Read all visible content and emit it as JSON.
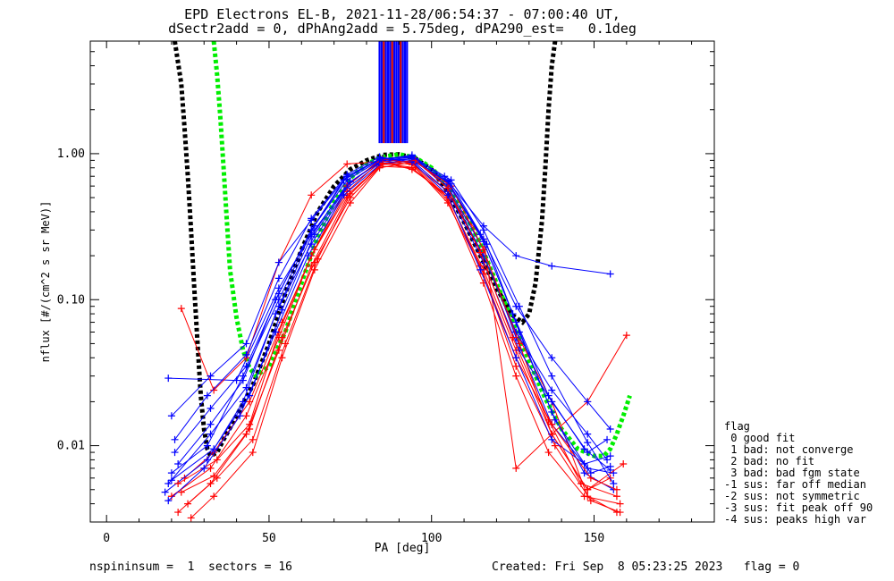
{
  "header": {
    "title_line1": "EPD Electrons EL-B, 2021-11-28/06:54:37 - 07:00:40 UT,",
    "title_line2": "dSectr2add = 0, dPhAng2add = 5.75deg, dPA290_est=   0.1deg"
  },
  "footer": {
    "left": "nspininsum =  1  sectors = 16",
    "right": "Created: Fri Sep  8 05:23:25 2023   flag = 0"
  },
  "legend": {
    "title": "flag",
    "items": [
      " 0 good fit",
      " 1 bad: not converge",
      " 2 bad: no fit",
      " 3 bad: bad fgm state",
      "-1 sus: far off median",
      "-2 sus: not symmetric",
      "-3 sus: fit peak off 90",
      "-4 sus: peaks high var"
    ]
  },
  "chart_data": {
    "type": "line",
    "xlabel": "PA [deg]",
    "ylabel": "nflux [#/(cm^2 s sr MeV)]",
    "xlim": [
      -5,
      187
    ],
    "ylim": [
      0.003,
      5.9
    ],
    "yscale": "log",
    "xticks": [
      0,
      50,
      100,
      150
    ],
    "xtick_labels": [
      "0",
      "50",
      "100",
      "150"
    ],
    "yticks": [
      0.01,
      0.1,
      1.0
    ],
    "ytick_labels": [
      "0.01",
      "0.10",
      "1.00"
    ],
    "colors": {
      "red": "#ff0000",
      "blue": "#0000ff",
      "black": "#000000",
      "green": "#00ee00"
    },
    "series": [
      {
        "color": "black",
        "style": "dotted-thick",
        "x": [
          21,
          23,
          24,
          25,
          26,
          27,
          28,
          29,
          30,
          31,
          32,
          34,
          36,
          40,
          45,
          50,
          55,
          60,
          65,
          70,
          75,
          80,
          85,
          90,
          95,
          100,
          105,
          110,
          115,
          120,
          125,
          128,
          130,
          132,
          134,
          135,
          136,
          137,
          138
        ],
        "y": [
          5.9,
          3.0,
          1.5,
          0.7,
          0.3,
          0.12,
          0.05,
          0.022,
          0.013,
          0.0095,
          0.0085,
          0.009,
          0.011,
          0.016,
          0.026,
          0.05,
          0.11,
          0.22,
          0.4,
          0.6,
          0.78,
          0.9,
          0.98,
          0.99,
          0.93,
          0.78,
          0.55,
          0.34,
          0.2,
          0.12,
          0.078,
          0.07,
          0.08,
          0.13,
          0.35,
          0.8,
          2.0,
          4.0,
          5.9
        ]
      },
      {
        "color": "green",
        "style": "dotted-thick",
        "x": [
          33,
          34,
          35,
          36,
          37,
          38,
          40,
          42,
          44,
          46,
          50,
          55,
          60,
          65,
          70,
          75,
          80,
          85,
          90,
          95,
          100,
          105,
          110,
          115,
          120,
          125,
          130,
          135,
          140,
          145,
          150,
          153,
          155,
          157,
          159,
          161
        ],
        "y": [
          5.9,
          3.5,
          1.8,
          0.8,
          0.35,
          0.16,
          0.075,
          0.045,
          0.034,
          0.03,
          0.035,
          0.06,
          0.13,
          0.27,
          0.47,
          0.68,
          0.85,
          0.95,
          0.99,
          0.94,
          0.8,
          0.6,
          0.4,
          0.24,
          0.13,
          0.07,
          0.038,
          0.021,
          0.013,
          0.0095,
          0.0085,
          0.0085,
          0.0095,
          0.012,
          0.016,
          0.022
        ]
      },
      {
        "color": "blue",
        "style": "line-plus",
        "x": [
          19,
          40,
          53,
          63,
          74,
          84,
          94,
          105,
          116,
          126,
          137,
          155
        ],
        "y": [
          0.029,
          0.028,
          0.12,
          0.28,
          0.6,
          0.9,
          0.98,
          0.65,
          0.32,
          0.2,
          0.17,
          0.15
        ]
      },
      {
        "color": "red",
        "style": "line-plus",
        "x": [
          23,
          33,
          43,
          53,
          63,
          74,
          84,
          94,
          105,
          116,
          126,
          137,
          148,
          160
        ],
        "y": [
          0.087,
          0.024,
          0.04,
          0.18,
          0.52,
          0.85,
          0.88,
          0.78,
          0.52,
          0.26,
          0.007,
          0.012,
          0.02,
          0.057
        ]
      },
      {
        "color": "blue",
        "style": "line-plus",
        "x": [
          20,
          32,
          43,
          53,
          63,
          74,
          84,
          94,
          105,
          116,
          126,
          137,
          148,
          155
        ],
        "y": [
          0.016,
          0.03,
          0.05,
          0.18,
          0.35,
          0.7,
          0.92,
          0.96,
          0.62,
          0.26,
          0.09,
          0.04,
          0.02,
          0.013
        ]
      },
      {
        "color": "red",
        "style": "line-plus",
        "x": [
          20,
          32,
          43,
          53,
          63,
          74,
          84,
          94,
          105,
          116,
          126,
          137,
          148,
          155
        ],
        "y": [
          0.0045,
          0.007,
          0.016,
          0.055,
          0.2,
          0.52,
          0.82,
          0.8,
          0.5,
          0.16,
          0.045,
          0.012,
          0.005,
          0.006
        ]
      },
      {
        "color": "blue",
        "style": "line-plus",
        "x": [
          19,
          32,
          43,
          53,
          63,
          74,
          84,
          94,
          105,
          116,
          126,
          137,
          148,
          156
        ],
        "y": [
          0.0055,
          0.012,
          0.025,
          0.09,
          0.27,
          0.62,
          0.88,
          0.92,
          0.6,
          0.22,
          0.055,
          0.014,
          0.007,
          0.0065
        ]
      },
      {
        "color": "red",
        "style": "line-plus",
        "x": [
          22,
          32,
          43,
          53,
          63,
          74,
          84,
          94,
          105,
          116,
          126,
          137,
          148,
          157
        ],
        "y": [
          0.0035,
          0.0055,
          0.012,
          0.045,
          0.17,
          0.5,
          0.84,
          0.86,
          0.55,
          0.2,
          0.06,
          0.02,
          0.0045,
          0.0035
        ]
      },
      {
        "color": "blue",
        "style": "line-plus",
        "x": [
          21,
          32,
          43,
          53,
          63,
          74,
          84,
          94,
          105,
          116,
          126,
          137,
          148,
          154
        ],
        "y": [
          0.009,
          0.018,
          0.035,
          0.11,
          0.3,
          0.66,
          0.9,
          0.94,
          0.58,
          0.2,
          0.06,
          0.024,
          0.012,
          0.008
        ]
      },
      {
        "color": "red",
        "style": "line-plus",
        "x": [
          24,
          33,
          44,
          54,
          64,
          74,
          84,
          94,
          105,
          116,
          126,
          136,
          147,
          158
        ],
        "y": [
          0.006,
          0.009,
          0.02,
          0.07,
          0.22,
          0.6,
          0.9,
          0.84,
          0.48,
          0.13,
          0.03,
          0.009,
          0.0045,
          0.004
        ]
      },
      {
        "color": "blue",
        "style": "line-plus",
        "x": [
          18,
          31,
          42,
          52,
          63,
          74,
          84,
          94,
          105,
          116,
          126,
          137,
          147,
          156
        ],
        "y": [
          0.0048,
          0.008,
          0.02,
          0.08,
          0.24,
          0.58,
          0.86,
          0.9,
          0.64,
          0.25,
          0.07,
          0.017,
          0.0065,
          0.005
        ]
      },
      {
        "color": "red",
        "style": "line-plus",
        "x": [
          26,
          33,
          45,
          54,
          64,
          75,
          84,
          95,
          106,
          116,
          127,
          137,
          148,
          159
        ],
        "y": [
          0.0032,
          0.0045,
          0.009,
          0.04,
          0.16,
          0.46,
          0.8,
          0.88,
          0.6,
          0.22,
          0.05,
          0.012,
          0.005,
          0.0075
        ]
      },
      {
        "color": "blue",
        "style": "line-plus",
        "x": [
          20,
          31,
          42,
          53,
          64,
          74,
          85,
          95,
          105,
          116,
          127,
          137,
          148,
          154
        ],
        "y": [
          0.0065,
          0.01,
          0.03,
          0.1,
          0.32,
          0.7,
          0.93,
          0.86,
          0.55,
          0.18,
          0.045,
          0.02,
          0.009,
          0.011
        ]
      },
      {
        "color": "red",
        "style": "line-plus",
        "x": [
          22,
          34,
          44,
          53,
          63,
          74,
          85,
          94,
          105,
          115,
          126,
          137,
          149,
          157
        ],
        "y": [
          0.0055,
          0.008,
          0.014,
          0.06,
          0.2,
          0.55,
          0.92,
          0.86,
          0.5,
          0.17,
          0.04,
          0.014,
          0.006,
          0.005
        ]
      },
      {
        "color": "blue",
        "style": "line-plus",
        "x": [
          19,
          30,
          41,
          52,
          62,
          73,
          84,
          95,
          106,
          117,
          127,
          138,
          149,
          155
        ],
        "y": [
          0.0042,
          0.007,
          0.016,
          0.06,
          0.2,
          0.52,
          0.84,
          0.9,
          0.62,
          0.24,
          0.06,
          0.015,
          0.0065,
          0.0072
        ]
      },
      {
        "color": "red",
        "style": "line-plus",
        "x": [
          25,
          34,
          45,
          55,
          65,
          75,
          85,
          95,
          105,
          116,
          126,
          138,
          149,
          158
        ],
        "y": [
          0.004,
          0.006,
          0.011,
          0.05,
          0.19,
          0.53,
          0.86,
          0.8,
          0.46,
          0.15,
          0.035,
          0.01,
          0.0042,
          0.0035
        ]
      },
      {
        "color": "blue",
        "style": "line-plus",
        "x": [
          21,
          31,
          43,
          53,
          63,
          74,
          84,
          94,
          105,
          115,
          126,
          137,
          147,
          155
        ],
        "y": [
          0.011,
          0.022,
          0.042,
          0.14,
          0.36,
          0.72,
          0.95,
          0.88,
          0.52,
          0.16,
          0.04,
          0.011,
          0.0075,
          0.0085
        ]
      },
      {
        "color": "blue",
        "style": "line-plus",
        "x": [
          20,
          33,
          44,
          54,
          64,
          75,
          85,
          95,
          106,
          116,
          127,
          137,
          148,
          156
        ],
        "y": [
          0.0058,
          0.0095,
          0.022,
          0.085,
          0.28,
          0.64,
          0.9,
          0.92,
          0.66,
          0.3,
          0.09,
          0.03,
          0.0105,
          0.0055
        ]
      },
      {
        "color": "red",
        "style": "line-plus",
        "x": [
          23,
          33,
          44,
          54,
          64,
          75,
          85,
          95,
          105,
          115,
          125,
          136,
          146,
          157
        ],
        "y": [
          0.0048,
          0.0062,
          0.013,
          0.055,
          0.18,
          0.5,
          0.85,
          0.9,
          0.58,
          0.21,
          0.055,
          0.015,
          0.0055,
          0.0045
        ]
      },
      {
        "color": "blue",
        "style": "line-plus",
        "x": [
          22,
          32,
          42,
          52,
          63,
          73,
          84,
          94,
          104,
          115,
          125,
          136,
          147,
          155
        ],
        "y": [
          0.0075,
          0.014,
          0.028,
          0.1,
          0.3,
          0.66,
          0.92,
          0.95,
          0.7,
          0.28,
          0.08,
          0.022,
          0.0095,
          0.0068
        ]
      }
    ]
  }
}
